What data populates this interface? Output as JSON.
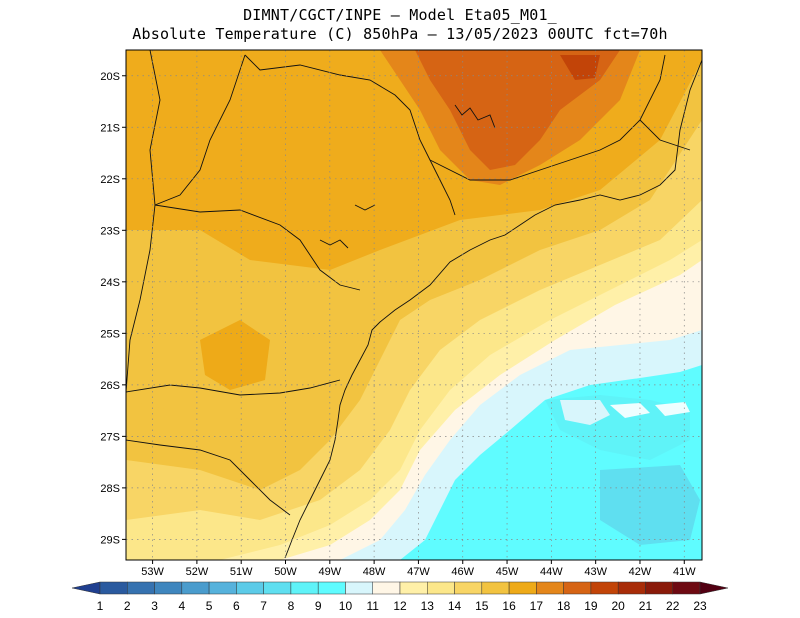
{
  "title": {
    "line1": "DIMNT/CGCT/INPE –  Model Eta05_M01_",
    "line2": "Absolute Temperature (C) 850hPa –  13/05/2023 00UTC fct=70h"
  },
  "map": {
    "lat_ticks": [
      "20S",
      "21S",
      "22S",
      "23S",
      "24S",
      "25S",
      "26S",
      "27S",
      "28S",
      "29S"
    ],
    "lon_ticks": [
      "53W",
      "52W",
      "51W",
      "50W",
      "49W",
      "48W",
      "47W",
      "46W",
      "45W",
      "44W",
      "43W",
      "42W",
      "41W"
    ],
    "lat_values": [
      -20,
      -21,
      -22,
      -23,
      -24,
      -25,
      -26,
      -27,
      -28,
      -29
    ],
    "lon_values": [
      -53,
      -52,
      -51,
      -50,
      -49,
      -48,
      -47,
      -46,
      -45,
      -44,
      -43,
      -42,
      -41
    ],
    "extent": {
      "lon_min": -53.6,
      "lon_max": -40.6,
      "lat_min": -29.4,
      "lat_max": -19.5
    }
  },
  "colorbar": {
    "labels": [
      "1",
      "2",
      "3",
      "4",
      "5",
      "6",
      "7",
      "8",
      "9",
      "10",
      "11",
      "12",
      "13",
      "14",
      "15",
      "16",
      "17",
      "18",
      "19",
      "20",
      "21",
      "22",
      "23"
    ],
    "colors": [
      "#1f3f8f",
      "#2a5a9f",
      "#3672b0",
      "#3f86be",
      "#4a9ccd",
      "#56b2dc",
      "#5ccbe8",
      "#5fdff0",
      "#5ff3f8",
      "#5ffcff",
      "#d8f6fc",
      "#fff6e6",
      "#fff0a8",
      "#fce78a",
      "#f8d565",
      "#f2c340",
      "#eeaa18",
      "#e4861a",
      "#d66414",
      "#c24408",
      "#a82c08",
      "#8a1a0a",
      "#6e0a12",
      "#520012"
    ]
  }
}
